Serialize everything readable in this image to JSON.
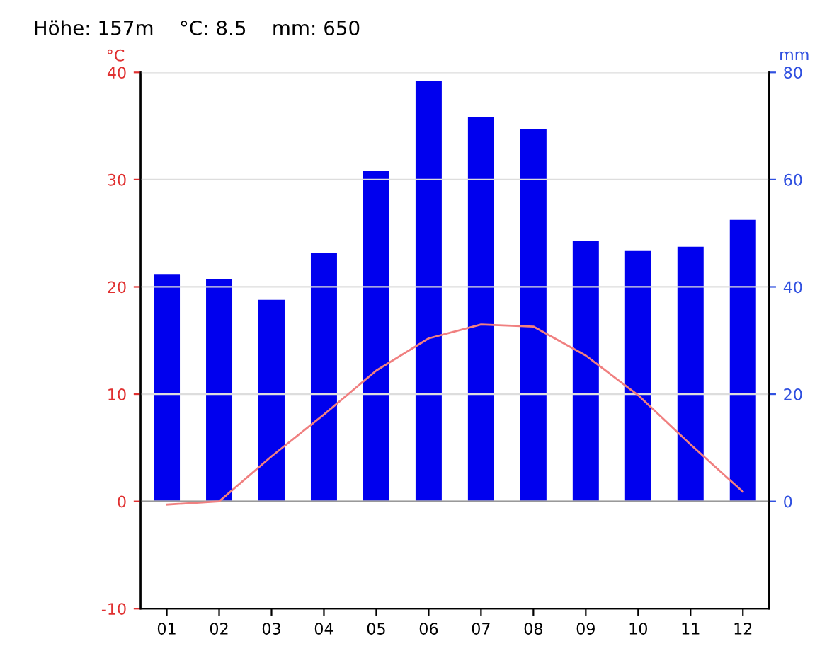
{
  "chart_data": {
    "type": "bar",
    "title": "Höhe: 157m    °C: 8.5    mm: 650",
    "ylabel": "°C",
    "y2label": "mm",
    "categories": [
      "01",
      "02",
      "03",
      "04",
      "05",
      "06",
      "07",
      "08",
      "09",
      "10",
      "11",
      "12"
    ],
    "series": [
      {
        "axis": "y2",
        "color": "#0000ee",
        "values": [
          42.4,
          41.4,
          37.6,
          46.4,
          61.7,
          78.4,
          71.6,
          69.5,
          48.5,
          46.7,
          47.5,
          52.5
        ]
      },
      {
        "type": "line",
        "axis": "y",
        "color": "#f08080",
        "values": [
          -0.3,
          0,
          4.2,
          8.1,
          12.2,
          15.2,
          16.5,
          16.3,
          13.6,
          9.9,
          5.3,
          0.9
        ]
      }
    ],
    "ylim": [
      -10,
      40
    ],
    "yticks": [
      -10,
      0,
      10,
      20,
      30,
      40
    ],
    "y2lim": [
      -20,
      80
    ],
    "y2ticks": [
      0,
      20,
      40,
      60,
      80
    ],
    "grid": "y",
    "legend": false,
    "marker": "none"
  }
}
